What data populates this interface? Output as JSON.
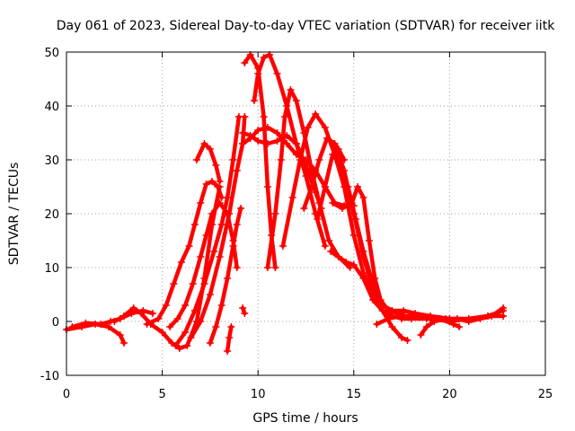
{
  "chart_data": {
    "type": "scatter",
    "title": "Day 061 of 2023, Sidereal Day-to-day VTEC variation (SDTVAR) for receiver iitk",
    "xlabel": "GPS time / hours",
    "ylabel": "SDTVAR / TECUs",
    "xlim": [
      0,
      25
    ],
    "ylim": [
      -10,
      50
    ],
    "xticks": [
      "0",
      "5",
      "10",
      "15",
      "20",
      "25"
    ],
    "yticks": [
      "-10",
      "0",
      "10",
      "20",
      "30",
      "40",
      "50"
    ],
    "grid": true,
    "marker": "+",
    "color": "#ff0000",
    "series": [
      {
        "name": "trace-1",
        "points": [
          [
            0.0,
            -1.5
          ],
          [
            0.8,
            -1.0
          ],
          [
            1.5,
            -0.5
          ],
          [
            2.2,
            -1.0
          ],
          [
            2.8,
            -2.5
          ],
          [
            3.0,
            -4.0
          ]
        ]
      },
      {
        "name": "trace-2",
        "points": [
          [
            0.3,
            -1.0
          ],
          [
            1.0,
            -0.3
          ],
          [
            1.8,
            -0.5
          ],
          [
            2.3,
            0.0
          ],
          [
            2.8,
            0.5
          ],
          [
            3.4,
            1.5
          ],
          [
            4.0,
            2.0
          ],
          [
            4.5,
            1.5
          ]
        ]
      },
      {
        "name": "trace-3",
        "points": [
          [
            2.5,
            0.0
          ],
          [
            3.0,
            1.0
          ],
          [
            3.5,
            2.5
          ],
          [
            3.9,
            1.5
          ],
          [
            4.4,
            -0.5
          ],
          [
            5.0,
            -2.0
          ],
          [
            5.5,
            -4.0
          ],
          [
            5.9,
            -5.0
          ],
          [
            6.3,
            -4.5
          ],
          [
            6.8,
            0.0
          ],
          [
            7.2,
            8.0
          ],
          [
            7.6,
            18.0
          ],
          [
            8.0,
            25.0
          ]
        ]
      },
      {
        "name": "trace-4",
        "points": [
          [
            4.2,
            -0.5
          ],
          [
            4.8,
            0.5
          ],
          [
            5.2,
            3.0
          ],
          [
            5.6,
            7.0
          ],
          [
            6.0,
            11.0
          ],
          [
            6.4,
            14.0
          ],
          [
            6.7,
            18.0
          ],
          [
            7.0,
            22.0
          ],
          [
            7.3,
            25.5
          ],
          [
            7.6,
            26.0
          ],
          [
            7.9,
            25.0
          ],
          [
            8.1,
            23.0
          ]
        ]
      },
      {
        "name": "trace-5",
        "points": [
          [
            5.4,
            -1.0
          ],
          [
            5.8,
            0.5
          ],
          [
            6.2,
            3.0
          ],
          [
            6.6,
            7.0
          ],
          [
            7.0,
            12.0
          ],
          [
            7.3,
            16.0
          ],
          [
            7.6,
            20.0
          ],
          [
            8.0,
            22.0
          ],
          [
            8.4,
            20.0
          ],
          [
            8.7,
            15.0
          ],
          [
            8.9,
            10.0
          ]
        ]
      },
      {
        "name": "trace-6",
        "points": [
          [
            5.7,
            -4.5
          ],
          [
            6.2,
            -2.0
          ],
          [
            6.7,
            2.0
          ],
          [
            7.2,
            7.0
          ],
          [
            7.7,
            13.0
          ],
          [
            8.1,
            18.0
          ],
          [
            8.4,
            23.0
          ],
          [
            8.7,
            30.0
          ],
          [
            9.0,
            38.0
          ]
        ]
      },
      {
        "name": "trace-7",
        "points": [
          [
            6.8,
            30.0
          ],
          [
            7.2,
            33.0
          ],
          [
            7.5,
            32.0
          ],
          [
            7.8,
            29.0
          ],
          [
            8.0,
            26.0
          ]
        ]
      },
      {
        "name": "trace-8",
        "points": [
          [
            6.5,
            -3.0
          ],
          [
            7.0,
            0.0
          ],
          [
            7.5,
            5.0
          ],
          [
            8.0,
            12.0
          ],
          [
            8.5,
            20.0
          ],
          [
            8.9,
            28.0
          ],
          [
            9.2,
            33.0
          ],
          [
            9.3,
            38.0
          ]
        ]
      },
      {
        "name": "trace-9",
        "points": [
          [
            7.5,
            -4.0
          ],
          [
            7.8,
            -1.0
          ],
          [
            8.1,
            3.0
          ],
          [
            8.4,
            8.0
          ],
          [
            8.7,
            14.0
          ],
          [
            8.9,
            18.0
          ],
          [
            9.1,
            21.0
          ]
        ]
      },
      {
        "name": "trace-10",
        "points": [
          [
            8.4,
            -5.5
          ],
          [
            8.5,
            -3.0
          ],
          [
            8.6,
            -1.0
          ]
        ]
      },
      {
        "name": "trace-11",
        "points": [
          [
            9.2,
            2.5
          ],
          [
            9.3,
            1.5
          ]
        ]
      },
      {
        "name": "trace-12",
        "points": [
          [
            9.2,
            33.0
          ],
          [
            9.6,
            34.0
          ],
          [
            10.0,
            35.5
          ],
          [
            10.5,
            36.0
          ],
          [
            11.0,
            35.0
          ],
          [
            11.5,
            33.0
          ],
          [
            12.0,
            31.0
          ],
          [
            12.5,
            30.0
          ],
          [
            13.0,
            28.0
          ],
          [
            13.5,
            25.0
          ],
          [
            14.0,
            22.0
          ],
          [
            14.5,
            21.5
          ],
          [
            15.0,
            21.5
          ]
        ]
      },
      {
        "name": "trace-13",
        "points": [
          [
            9.2,
            35.0
          ],
          [
            9.6,
            34.5
          ],
          [
            10.0,
            33.5
          ],
          [
            10.5,
            33.0
          ],
          [
            11.0,
            33.5
          ],
          [
            11.5,
            34.5
          ],
          [
            12.0,
            33.0
          ],
          [
            12.5,
            29.0
          ],
          [
            13.0,
            24.0
          ],
          [
            13.3,
            21.0
          ]
        ]
      },
      {
        "name": "trace-14",
        "points": [
          [
            9.3,
            48.0
          ],
          [
            9.6,
            49.5
          ],
          [
            10.0,
            47.0
          ],
          [
            10.3,
            38.0
          ],
          [
            10.5,
            25.0
          ],
          [
            10.7,
            16.0
          ],
          [
            10.9,
            10.0
          ]
        ]
      },
      {
        "name": "trace-15",
        "points": [
          [
            9.8,
            41.0
          ],
          [
            10.0,
            46.0
          ],
          [
            10.3,
            49.0
          ],
          [
            10.6,
            49.5
          ],
          [
            11.0,
            46.0
          ],
          [
            11.5,
            40.0
          ],
          [
            12.0,
            33.0
          ],
          [
            12.5,
            27.0
          ],
          [
            13.0,
            20.0
          ],
          [
            13.5,
            14.0
          ]
        ]
      },
      {
        "name": "trace-16",
        "points": [
          [
            10.5,
            10.0
          ],
          [
            10.9,
            20.0
          ],
          [
            11.2,
            30.0
          ],
          [
            11.4,
            38.0
          ],
          [
            11.7,
            43.0
          ],
          [
            12.0,
            41.0
          ],
          [
            12.4,
            35.0
          ],
          [
            12.8,
            28.0
          ],
          [
            13.2,
            22.0
          ],
          [
            13.7,
            15.0
          ],
          [
            14.2,
            12.0
          ],
          [
            14.8,
            10.0
          ]
        ]
      },
      {
        "name": "trace-17",
        "points": [
          [
            11.3,
            14.0
          ],
          [
            11.8,
            23.0
          ],
          [
            12.2,
            30.0
          ],
          [
            12.6,
            36.0
          ],
          [
            13.0,
            38.5
          ],
          [
            13.5,
            36.0
          ],
          [
            14.0,
            31.0
          ],
          [
            14.5,
            25.0
          ],
          [
            15.0,
            16.0
          ],
          [
            15.5,
            9.0
          ],
          [
            16.0,
            5.0
          ],
          [
            16.5,
            3.0
          ],
          [
            17.0,
            2.0
          ],
          [
            17.5,
            1.5
          ]
        ]
      },
      {
        "name": "trace-18",
        "points": [
          [
            12.4,
            21.0
          ],
          [
            12.8,
            25.0
          ],
          [
            13.2,
            30.0
          ],
          [
            13.6,
            34.0
          ],
          [
            14.0,
            33.0
          ],
          [
            14.5,
            28.0
          ],
          [
            15.0,
            20.0
          ],
          [
            15.5,
            12.0
          ],
          [
            16.0,
            6.0
          ],
          [
            16.5,
            3.0
          ],
          [
            17.0,
            2.0
          ],
          [
            17.6,
            2.0
          ],
          [
            18.2,
            1.5
          ],
          [
            19.0,
            1.0
          ],
          [
            20.0,
            0.5
          ],
          [
            21.0,
            0.5
          ],
          [
            22.0,
            1.0
          ],
          [
            22.8,
            1.0
          ]
        ]
      },
      {
        "name": "trace-19",
        "points": [
          [
            13.1,
            19.0
          ],
          [
            13.5,
            25.0
          ],
          [
            13.9,
            31.0
          ],
          [
            14.3,
            29.0
          ],
          [
            14.7,
            25.0
          ],
          [
            15.1,
            19.0
          ],
          [
            15.5,
            13.0
          ],
          [
            16.0,
            7.0
          ],
          [
            16.5,
            2.0
          ],
          [
            17.0,
            -1.0
          ],
          [
            17.5,
            -3.0
          ],
          [
            17.8,
            -3.5
          ]
        ]
      },
      {
        "name": "trace-20",
        "points": [
          [
            13.9,
            22.0
          ],
          [
            14.4,
            21.0
          ],
          [
            14.9,
            22.0
          ],
          [
            15.2,
            25.0
          ],
          [
            15.5,
            23.0
          ],
          [
            15.8,
            15.0
          ],
          [
            16.1,
            8.0
          ],
          [
            16.4,
            4.0
          ],
          [
            16.8,
            2.0
          ],
          [
            17.3,
            1.5
          ]
        ]
      },
      {
        "name": "trace-21",
        "points": [
          [
            13.8,
            13.0
          ],
          [
            14.2,
            12.0
          ],
          [
            14.6,
            11.0
          ],
          [
            15.0,
            10.5
          ],
          [
            15.5,
            8.0
          ],
          [
            16.0,
            4.0
          ],
          [
            16.5,
            2.0
          ],
          [
            17.0,
            1.0
          ],
          [
            17.5,
            0.5
          ],
          [
            18.0,
            0.5
          ],
          [
            19.0,
            0.5
          ],
          [
            20.0,
            0.0
          ],
          [
            21.0,
            0.5
          ],
          [
            22.0,
            1.0
          ],
          [
            22.8,
            2.0
          ]
        ]
      },
      {
        "name": "trace-22",
        "points": [
          [
            16.2,
            -0.5
          ],
          [
            16.8,
            0.5
          ],
          [
            17.4,
            1.0
          ],
          [
            18.0,
            1.0
          ],
          [
            18.8,
            0.5
          ],
          [
            19.5,
            0.5
          ],
          [
            20.2,
            -0.5
          ],
          [
            20.5,
            -1.0
          ]
        ]
      },
      {
        "name": "trace-23",
        "points": [
          [
            18.5,
            -2.5
          ],
          [
            18.8,
            -1.0
          ],
          [
            19.2,
            0.0
          ],
          [
            19.8,
            0.5
          ],
          [
            20.4,
            0.5
          ],
          [
            21.0,
            0.0
          ],
          [
            21.6,
            0.5
          ],
          [
            22.2,
            1.0
          ],
          [
            22.8,
            2.5
          ]
        ]
      },
      {
        "name": "trace-24",
        "points": [
          [
            14.0,
            33.0
          ],
          [
            14.2,
            32.0
          ],
          [
            14.5,
            30.0
          ]
        ]
      }
    ]
  }
}
